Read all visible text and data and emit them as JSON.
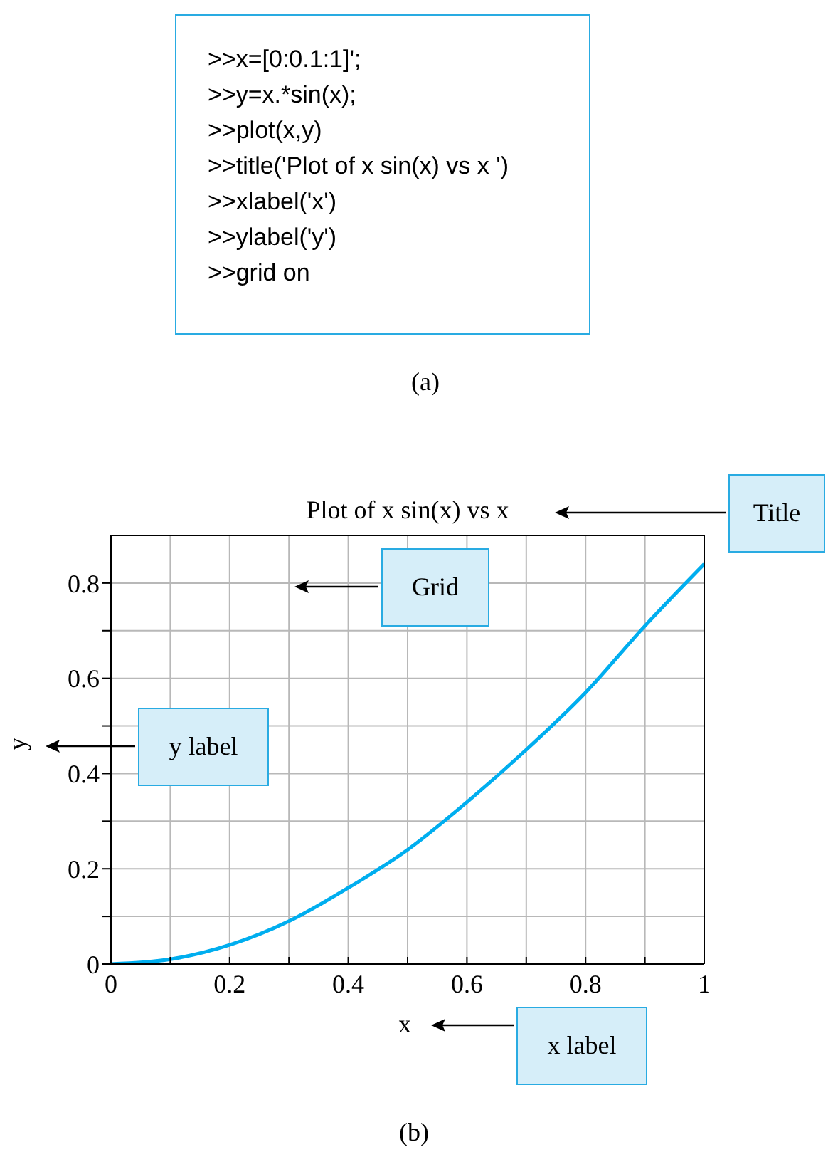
{
  "chart_data": {
    "type": "line",
    "title": "Plot of x sin(x) vs x",
    "xlabel": "x",
    "ylabel": "y",
    "x": [
      0,
      0.1,
      0.2,
      0.3,
      0.4,
      0.5,
      0.6,
      0.7,
      0.8,
      0.9,
      1
    ],
    "series": [
      {
        "color": "#00aeef",
        "values": [
          0,
          0.01,
          0.04,
          0.09,
          0.16,
          0.24,
          0.34,
          0.45,
          0.57,
          0.71,
          0.84
        ]
      }
    ],
    "xlim": [
      0,
      1
    ],
    "ylim": [
      0,
      0.9
    ],
    "xticks": [
      0,
      {
        "value": 0.1,
        "label": null
      },
      0.2,
      {
        "value": 0.3,
        "label": null
      },
      0.4,
      {
        "value": 0.5,
        "label": null
      },
      0.6,
      {
        "value": 0.7,
        "label": null
      },
      0.8,
      {
        "value": 0.9,
        "label": null
      },
      1
    ],
    "yticks": [
      0,
      {
        "value": 0.1,
        "label": null
      },
      0.2,
      {
        "value": 0.3,
        "label": null
      },
      0.4,
      {
        "value": 0.5,
        "label": null
      },
      0.6,
      {
        "value": 0.7,
        "label": null
      },
      0.8
    ],
    "grid": true,
    "marker": "none",
    "line_style": "solid",
    "annotations": [
      ">>x=[0:0.1:1]';",
      ">>y=x.*sin(x);",
      ">>plot(x,y)",
      ">>title('Plot of x sin(x) vs x ')",
      ">>xlabel('x')",
      ">>ylabel('y')",
      ">>grid on",
      "(a)",
      "Title",
      "Grid",
      "y label",
      "x label",
      "(b)"
    ]
  }
}
